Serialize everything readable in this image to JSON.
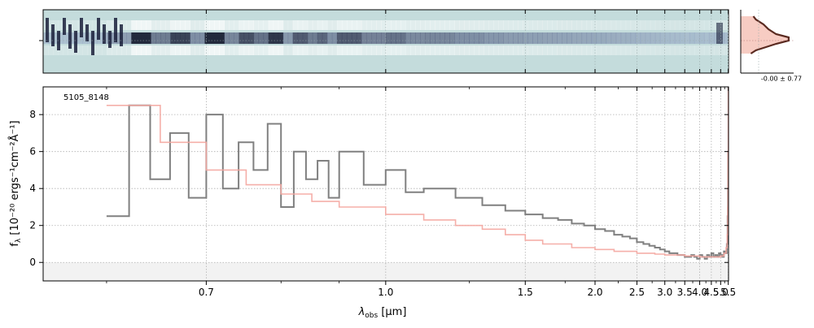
{
  "chart_data": {
    "type": "line",
    "object_label": "5105_8148",
    "xlabel": "λ",
    "xlabel_sub": "obs",
    "xlabel_unit": "[μm]",
    "ylabel": "f",
    "ylabel_sub": "λ",
    "ylabel_unit": "[10⁻²⁰ ergs⁻¹cm⁻²Å⁻¹]",
    "x_scale": "reciprocal (pixel-index) wavelength axis",
    "xlim": [
      0.55,
      5.52
    ],
    "ylim": [
      -1.0,
      9.5
    ],
    "x_tick_labels": [
      "0.7",
      "1.0",
      "1.5",
      "2.0",
      "2.5",
      "3.0",
      "3.5",
      "4.0",
      "4.5",
      "5.0",
      "5.5"
    ],
    "x_tick_values": [
      0.7,
      1.0,
      1.5,
      2.0,
      2.5,
      3.0,
      3.5,
      4.0,
      4.5,
      5.0,
      5.5
    ],
    "y_tick_labels": [
      "0",
      "2",
      "4",
      "6",
      "8"
    ],
    "y_tick_values": [
      0,
      2,
      4,
      6,
      8
    ],
    "grid": true,
    "inset_label": "-0.00 ± 0.77",
    "colors": {
      "spectrum": "#808080",
      "model": "#f4a6a0",
      "image_bg": "#c4dcdc",
      "image_dark": "#1a1f3a",
      "profile": "#5a2a20",
      "profile_fill": "#f6c7bd",
      "grid": "#b0b0b0"
    },
    "series": [
      {
        "type": "step",
        "color": "#808080",
        "x": [
          0.6,
          0.62,
          0.64,
          0.66,
          0.68,
          0.7,
          0.72,
          0.74,
          0.76,
          0.78,
          0.8,
          0.82,
          0.84,
          0.86,
          0.88,
          0.9,
          0.95,
          1.0,
          1.05,
          1.1,
          1.2,
          1.3,
          1.4,
          1.5,
          1.6,
          1.7,
          1.8,
          1.9,
          2.0,
          2.1,
          2.2,
          2.3,
          2.4,
          2.5,
          2.6,
          2.7,
          2.8,
          2.9,
          3.0,
          3.1,
          3.2,
          3.3,
          3.4,
          3.5,
          3.6,
          3.7,
          3.8,
          3.9,
          4.0,
          4.1,
          4.2,
          4.3,
          4.4,
          4.5,
          4.6,
          4.7,
          4.8,
          4.9,
          5.0,
          5.1,
          5.2,
          5.3,
          5.4,
          5.45,
          5.48,
          5.5
        ],
        "y": [
          2.5,
          8.5,
          4.5,
          7.0,
          3.5,
          8.0,
          4.0,
          6.5,
          5.0,
          7.5,
          3.0,
          6.0,
          4.5,
          5.5,
          3.5,
          6.0,
          4.2,
          5.0,
          3.8,
          4.0,
          3.5,
          3.1,
          2.8,
          2.6,
          2.4,
          2.3,
          2.1,
          2.0,
          1.8,
          1.7,
          1.5,
          1.4,
          1.3,
          1.1,
          1.0,
          0.9,
          0.8,
          0.7,
          0.6,
          0.5,
          0.5,
          0.4,
          0.4,
          0.3,
          0.3,
          0.4,
          0.3,
          0.2,
          0.4,
          0.3,
          0.2,
          0.4,
          0.3,
          0.5,
          0.3,
          0.4,
          0.3,
          0.5,
          0.4,
          0.3,
          0.6,
          0.5,
          1.0,
          2.5,
          4.0,
          6.0
        ]
      },
      {
        "type": "step",
        "color": "#f4a6a0",
        "x": [
          0.6,
          0.65,
          0.7,
          0.75,
          0.8,
          0.85,
          0.9,
          1.0,
          1.1,
          1.2,
          1.3,
          1.4,
          1.5,
          1.6,
          1.8,
          2.0,
          2.2,
          2.5,
          2.8,
          3.0,
          3.5,
          4.0,
          4.5,
          5.0,
          5.2,
          5.35,
          5.42,
          5.46,
          5.48,
          5.5
        ],
        "y": [
          8.5,
          6.5,
          5.0,
          4.2,
          3.7,
          3.3,
          3.0,
          2.6,
          2.3,
          2.0,
          1.8,
          1.5,
          1.2,
          1.0,
          0.8,
          0.7,
          0.6,
          0.5,
          0.45,
          0.4,
          0.35,
          0.3,
          0.3,
          0.35,
          0.5,
          0.8,
          1.5,
          3.0,
          6.0,
          9.5
        ]
      }
    ]
  }
}
